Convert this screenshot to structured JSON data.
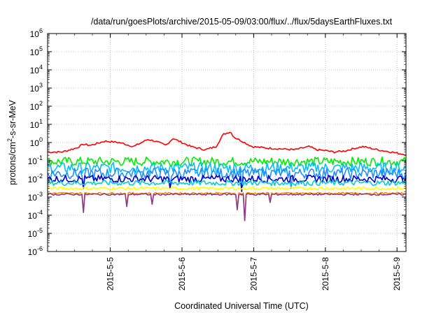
{
  "chart_data": {
    "type": "line",
    "title": "/data/run/goesPlots/archive/2015-05-09/03:00/flux/../flux/5daysEarthFluxes.txt",
    "xlabel": "Coordinated Universal Time (UTC)",
    "ylabel_base": "protons/cm",
    "ylabel_sup": "2",
    "ylabel_rest": "-s-sr-MeV",
    "ylim": [
      1e-06,
      1000000.0
    ],
    "y_scale": "log",
    "y_ticks": [
      {
        "base": "10",
        "exp": "-6"
      },
      {
        "base": "10",
        "exp": "-5"
      },
      {
        "base": "10",
        "exp": "-4"
      },
      {
        "base": "10",
        "exp": "-3"
      },
      {
        "base": "10",
        "exp": "-2"
      },
      {
        "base": "10",
        "exp": "-1"
      },
      {
        "base": "10",
        "exp": "0"
      },
      {
        "base": "10",
        "exp": "1"
      },
      {
        "base": "10",
        "exp": "2"
      },
      {
        "base": "10",
        "exp": "3"
      },
      {
        "base": "10",
        "exp": "4"
      },
      {
        "base": "10",
        "exp": "5"
      },
      {
        "base": "10",
        "exp": "6"
      }
    ],
    "x_ticks": [
      "2015-5-5",
      "2015-5-6",
      "2015-5-7",
      "2015-5-8",
      "2015-5-9"
    ],
    "xlim": [
      "2015-05-04 03:00",
      "2015-05-09 03:00"
    ],
    "grid": true,
    "series": [
      {
        "color": "#ff0000",
        "level": 0.8,
        "anchors": [
          [
            0,
            0.3
          ],
          [
            4,
            0.3
          ],
          [
            8,
            0.5
          ],
          [
            10,
            0.8
          ],
          [
            12,
            0.7
          ],
          [
            16,
            1.2
          ],
          [
            20,
            1.0
          ],
          [
            24,
            0.6
          ],
          [
            28,
            1.5
          ],
          [
            30,
            1.2
          ],
          [
            33,
            0.7
          ],
          [
            35,
            1.7
          ],
          [
            37,
            1.1
          ],
          [
            40,
            0.6
          ],
          [
            44,
            0.4
          ],
          [
            47,
            0.6
          ],
          [
            49,
            2.8
          ],
          [
            51,
            4.0
          ],
          [
            52,
            2.0
          ],
          [
            55,
            1.0
          ],
          [
            57,
            0.6
          ],
          [
            61,
            0.5
          ],
          [
            65,
            0.45
          ],
          [
            69,
            0.4
          ],
          [
            73,
            0.6
          ],
          [
            75,
            0.4
          ],
          [
            78,
            0.35
          ],
          [
            80,
            0.3
          ],
          [
            83,
            0.35
          ],
          [
            86,
            0.5
          ],
          [
            88,
            0.6
          ],
          [
            92,
            0.4
          ],
          [
            96,
            0.3
          ],
          [
            98,
            0.25
          ],
          [
            100,
            0.22
          ]
        ],
        "jitter": 0.05,
        "dips": []
      },
      {
        "color": "#00ee00",
        "level": 0.09,
        "anchors": [],
        "jitter": 0.25,
        "dips": []
      },
      {
        "color": "#00bfff",
        "level": 0.04,
        "anchors": [],
        "jitter": 0.3,
        "dips": []
      },
      {
        "color": "#1e90ff",
        "level": 0.02,
        "anchors": [],
        "jitter": 0.3,
        "dips": [
          [
            10,
            0.004
          ],
          [
            34,
            0.004
          ],
          [
            54,
            0.003
          ],
          [
            68,
            0.003
          ]
        ]
      },
      {
        "color": "#0000cd",
        "level": 0.01,
        "anchors": [],
        "jitter": 0.2,
        "dips": [
          [
            10,
            0.003
          ],
          [
            34,
            0.003
          ],
          [
            54,
            0.002
          ]
        ]
      },
      {
        "color": "#00ced1",
        "level": 0.006,
        "anchors": [],
        "jitter": 0.15,
        "dips": []
      },
      {
        "color": "#ffff00",
        "level": 0.003,
        "anchors": [],
        "jitter": 0.08,
        "dips": []
      },
      {
        "color": "#ff8c00",
        "level": 0.0016,
        "anchors": [],
        "jitter": 0.05,
        "dips": [
          [
            10,
            0.00015
          ],
          [
            22,
            0.0003
          ],
          [
            29,
            0.0004
          ],
          [
            53,
            0.0002
          ],
          [
            55,
            5e-05
          ],
          [
            62,
            0.0005
          ]
        ]
      },
      {
        "color": "#8b3a8b",
        "level": 0.0014,
        "anchors": [],
        "jitter": 0.05,
        "dips": [
          [
            10,
            0.00014
          ],
          [
            22,
            0.0003
          ],
          [
            29,
            0.0004
          ],
          [
            53,
            0.0002
          ],
          [
            55,
            5e-05
          ],
          [
            62,
            0.0005
          ]
        ]
      }
    ]
  }
}
